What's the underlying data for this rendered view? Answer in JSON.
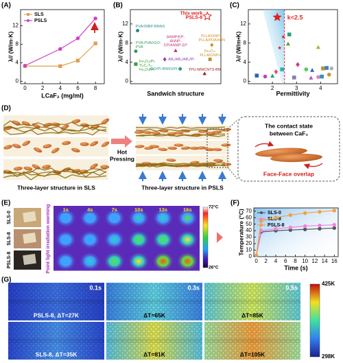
{
  "chart_data": [
    {
      "type": "line",
      "panel": "(A)",
      "x": [
        0,
        4,
        6,
        8
      ],
      "xlabel": "LCaF₂ (mg/ml)",
      "ylabel": "λ// (W/m·K)",
      "xlim": [
        -0.5,
        9
      ],
      "xticks": [
        0,
        2,
        4,
        6,
        8
      ],
      "ylim": [
        -0.5,
        15.5
      ],
      "yticks": [
        0,
        4,
        8,
        12
      ],
      "legend": "upper left",
      "series": [
        {
          "name": "SLS",
          "color": "#e0a050",
          "marker": "square",
          "values": [
            3.3,
            3.3,
            4.5,
            8.2
          ]
        },
        {
          "name": "PSLS",
          "color": "#d040c0",
          "marker": "circle",
          "values": [
            3.4,
            7.0,
            9.3,
            13.6
          ]
        }
      ]
    },
    {
      "type": "scatter",
      "panel": "(B)",
      "xlabel": "Sandwich structure",
      "ylabel": "λ// (W/m·K)",
      "ylim": [
        -0.5,
        15
      ],
      "yticks": [
        0,
        4,
        8,
        12
      ],
      "points": [
        {
          "label": [
            "PVA/30BP-BNNS"
          ],
          "value": 10.6,
          "color": "#2a8a8a",
          "marker": "circle"
        },
        {
          "label": [
            "PVA-PVA/rGO-",
            "PVA"
          ],
          "value": 6.3,
          "color": "#2c9a5a",
          "marker": "circle"
        },
        {
          "label": [
            "Fe₃O₄/PI-",
            "Ti₃C₂Tₓ-",
            "Fe₃O₄/PI"
          ],
          "value": 3.6,
          "color": "#3aa03a",
          "marker": "square"
        },
        {
          "label": [
            "ANMP/EP-",
            "ANNP-",
            "EP/ANMP-EP"
          ],
          "value": 6.4,
          "color": "#c03070",
          "marker": "triangle"
        },
        {
          "label": [
            "AB₁/AB₂/AB₁/PI"
          ],
          "value": 4.6,
          "color": "#8a40c0",
          "marker": "diamond"
        },
        {
          "label": [
            "rGO/PI-BNNS/PI"
          ],
          "value": 2.6,
          "color": "#2a9a8a",
          "marker": "circle"
        },
        {
          "label": [
            "This work",
            "PSLS-8"
          ],
          "value": 13.6,
          "color": "#e02020",
          "marker": "star"
        },
        {
          "label": [
            "PLLA/GNPs-",
            "PLLA/PDA/hBN"
          ],
          "value": 7.6,
          "color": "#d09020",
          "marker": "diamond"
        },
        {
          "label": [
            "Fe₃O₄-",
            "PLLA/GNPs"
          ],
          "value": 4.6,
          "color": "#c09030",
          "marker": "square"
        },
        {
          "label": [
            "TPU-MWCNTS-BN"
          ],
          "value": 1.6,
          "color": "#a02020",
          "marker": "triangle"
        }
      ]
    },
    {
      "type": "scatter",
      "panel": "(C)",
      "xlabel": "Permittivity",
      "ylabel": "λ// (W/m•K)",
      "xlim": [
        1,
        4.7
      ],
      "xticks": [
        2,
        3,
        4
      ],
      "ylim": [
        -0.5,
        15
      ],
      "yticks": [
        0,
        4,
        8,
        12
      ],
      "threshold": 2.5,
      "annotation": "k<2.5",
      "x": [
        2.2,
        2.45,
        2.3,
        2.7,
        2.65,
        2.9,
        3.05,
        3.4,
        3.6,
        3.65,
        3.9,
        3.9,
        4.05,
        4.1,
        4.25,
        4.35,
        4.45,
        1.35,
        1.7,
        2.0,
        2.15,
        2.4
      ],
      "values": [
        13.4,
        9.3,
        7.0,
        9.8,
        7.8,
        0.8,
        3.5,
        2.5,
        0.7,
        2.3,
        7.1,
        0.9,
        1.0,
        2.7,
        2.8,
        1.4,
        2.7,
        1.2,
        1.0,
        1.1,
        2.0,
        2.5
      ],
      "colors": [
        "#e02020",
        "#e02020",
        "#e02020",
        "#30a080",
        "#60a030",
        "#8080b0",
        "#d03090",
        "#60c060",
        "#c050c0",
        "#3060c0",
        "#90c030",
        "#e080c0",
        "#3090c0",
        "#c09030",
        "#4080d0",
        "#d09030",
        "#b0b0b0",
        "#3060c0",
        "#c040c0",
        "#20a080",
        "#e05070",
        "#30b0b0"
      ],
      "markers": [
        "star",
        "star",
        "star",
        "square",
        "triangle",
        "square",
        "diamond",
        "circle",
        "triangle",
        "triangle",
        "triangle",
        "circle",
        "square",
        "square",
        "square",
        "circle",
        "circle",
        "square",
        "circle",
        "triangle",
        "diamond",
        "square"
      ]
    },
    {
      "type": "line",
      "panel": "(F)",
      "x": [
        0,
        1,
        4,
        7,
        10,
        13,
        16
      ],
      "xlabel": "Time (s)",
      "ylabel": "Temperature (°C)",
      "xlim": [
        -0.5,
        16.8
      ],
      "xticks": [
        0,
        2,
        4,
        6,
        8,
        10,
        12,
        14,
        16
      ],
      "ylim": [
        0,
        75
      ],
      "yticks": [
        0,
        10,
        20,
        30,
        40,
        50,
        60,
        70
      ],
      "legend": "upper left",
      "series": [
        {
          "name": "SLS-0",
          "color": "#555555",
          "marker": "circle",
          "values": [
            2,
            38,
            40,
            41,
            42,
            43,
            44
          ]
        },
        {
          "name": "SLS-8",
          "color": "#f080e0",
          "marker": "circle",
          "values": [
            2,
            40,
            43,
            45,
            47,
            48,
            49
          ]
        },
        {
          "name": "PSLS-8",
          "color": "#f0a040",
          "marker": "circle",
          "values": [
            2,
            55,
            60,
            64,
            67,
            69,
            71
          ]
        }
      ]
    }
  ],
  "diagram": {
    "panel": "(D)",
    "left_caption": "Three-layer structure in SLS",
    "arrow_label": [
      "Hot",
      "Pressing"
    ],
    "right_caption": "Three-layer structure in PSLS",
    "inset_title": [
      "The contact state",
      "between CaF₂"
    ],
    "inset_caption": "Face-Face overlap"
  },
  "thermal": {
    "panel": "(E)",
    "samples": [
      "SLS-0",
      "SLS-8",
      "PSLS-8"
    ],
    "times": [
      "1s",
      "4s",
      "7s",
      "10s",
      "13s",
      "16s"
    ],
    "side_label": "Point light irradiation warming",
    "scale_max": "72°C",
    "scale_min": "26°C"
  },
  "simulation": {
    "panel": "(G)",
    "times": [
      "0.1s",
      "0.3s",
      "0.5s"
    ],
    "rows": [
      [
        "PSLS-8, ΔT=27K",
        "ΔT=65K",
        "ΔT=85K"
      ],
      [
        "SLS-8, ΔT=35K",
        "ΔT=81K",
        "ΔT=105K"
      ]
    ],
    "scale_max": "425K",
    "scale_min": "298K"
  }
}
